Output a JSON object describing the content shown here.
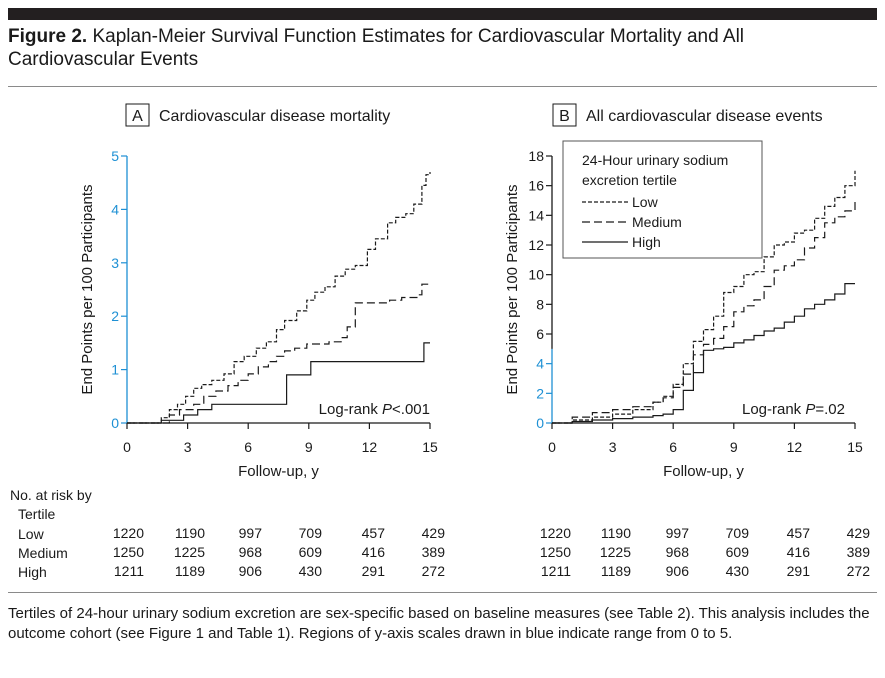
{
  "figure": {
    "label": "Figure 2.",
    "title_text": "Kaplan-Meier Survival Function Estimates for Cardiovascular Mortality and All Cardiovascular Events"
  },
  "colors": {
    "axis_blue": "#1e90d4",
    "ink": "#1a1a1a"
  },
  "chart_data": [
    {
      "type": "line",
      "panel_letter": "A",
      "title": "Cardiovascular disease mortality",
      "xlabel": "Follow-up, y",
      "ylabel": "End Points per 100 Participants",
      "xlim": [
        0,
        15
      ],
      "ylim": [
        0,
        5
      ],
      "xticks": [
        0,
        3,
        6,
        9,
        12,
        15
      ],
      "yticks": [
        0,
        1,
        2,
        3,
        4,
        5
      ],
      "annotation": "Log-rank P<.001",
      "annotation_prefix": "Log-rank ",
      "annotation_p": "P",
      "annotation_rest": "<.001",
      "series": [
        {
          "name": "Low",
          "dash": "4,2",
          "x": [
            0,
            1.7,
            2.1,
            2.5,
            2.9,
            3.3,
            3.7,
            4.2,
            4.8,
            5.3,
            5.8,
            6.4,
            6.9,
            7.4,
            7.8,
            8.4,
            8.9,
            9.3,
            9.8,
            10.3,
            10.8,
            11.3,
            11.9,
            12.3,
            12.9,
            13.3,
            13.8,
            14.2,
            14.6,
            14.8,
            15.0
          ],
          "y": [
            0,
            0.1,
            0.25,
            0.35,
            0.5,
            0.65,
            0.72,
            0.8,
            0.92,
            1.15,
            1.25,
            1.4,
            1.52,
            1.75,
            1.92,
            2.1,
            2.3,
            2.45,
            2.55,
            2.75,
            2.88,
            2.95,
            3.25,
            3.45,
            3.75,
            3.85,
            3.92,
            4.1,
            4.45,
            4.65,
            4.7
          ]
        },
        {
          "name": "Medium",
          "dash": "8,4",
          "x": [
            0,
            2.1,
            2.6,
            3.3,
            3.8,
            4.4,
            5.0,
            5.5,
            6.0,
            6.5,
            7.0,
            7.4,
            7.8,
            8.3,
            8.9,
            9.4,
            10.0,
            10.6,
            10.9,
            11.3,
            12.2,
            12.6,
            13.0,
            13.6,
            14.4,
            14.6,
            15.0
          ],
          "y": [
            0,
            0.15,
            0.25,
            0.35,
            0.5,
            0.6,
            0.7,
            0.8,
            0.92,
            1.05,
            1.15,
            1.25,
            1.35,
            1.4,
            1.48,
            1.48,
            1.52,
            1.6,
            1.8,
            2.25,
            2.25,
            2.25,
            2.3,
            2.35,
            2.4,
            2.6,
            2.6
          ]
        },
        {
          "name": "High",
          "dash": "",
          "x": [
            0,
            1.7,
            2.8,
            3.5,
            4.2,
            5.3,
            7.3,
            7.9,
            9.1,
            12.0,
            14.6,
            14.7,
            15.0
          ],
          "y": [
            0,
            0.05,
            0.15,
            0.25,
            0.35,
            0.35,
            0.35,
            0.9,
            1.15,
            1.15,
            1.15,
            1.5,
            1.5
          ]
        }
      ]
    },
    {
      "type": "line",
      "panel_letter": "B",
      "title": "All cardiovascular disease events",
      "xlabel": "Follow-up, y",
      "ylabel": "End Points per 100 Participants",
      "xlim": [
        0,
        15
      ],
      "ylim": [
        0,
        18
      ],
      "xticks": [
        0,
        3,
        6,
        9,
        12,
        15
      ],
      "yticks": [
        0,
        2,
        4,
        6,
        8,
        10,
        12,
        14,
        16,
        18
      ],
      "blue_range": [
        0,
        5
      ],
      "annotation": "Log-rank P=.02",
      "annotation_prefix": "Log-rank ",
      "annotation_p": "P",
      "annotation_rest": "=.02",
      "legend": {
        "title_line1": "24-Hour urinary sodium",
        "title_line2": "excretion tertile",
        "position": "top-left",
        "entries": [
          "Low",
          "Medium",
          "High"
        ]
      },
      "series": [
        {
          "name": "Low",
          "dash": "4,2",
          "x": [
            0,
            1,
            2,
            3,
            4,
            5,
            5.5,
            6,
            6.5,
            7,
            7.5,
            8,
            8.5,
            9,
            9.5,
            10,
            10.5,
            11,
            11.5,
            12,
            12.5,
            13,
            13.5,
            14,
            14.5,
            15
          ],
          "y": [
            0,
            0.2,
            0.4,
            0.6,
            0.9,
            1.4,
            1.8,
            2.6,
            4.0,
            5.5,
            6.3,
            7.2,
            8.8,
            9.2,
            10.0,
            10.2,
            11.2,
            12.0,
            12.2,
            12.8,
            13.0,
            13.8,
            14.6,
            15.2,
            16.0,
            17.0
          ]
        },
        {
          "name": "Medium",
          "dash": "8,4",
          "x": [
            0,
            1,
            2,
            3,
            4,
            5,
            5.5,
            6,
            6.5,
            7,
            7.5,
            8,
            8.5,
            9,
            9.5,
            10,
            10.5,
            11,
            11.5,
            12,
            12.5,
            13,
            13.5,
            14,
            14.5,
            15
          ],
          "y": [
            0,
            0.4,
            0.7,
            0.9,
            1.1,
            1.4,
            1.7,
            2.4,
            3.3,
            4.6,
            5.3,
            5.7,
            6.5,
            7.5,
            7.9,
            8.3,
            9.2,
            10.3,
            10.6,
            11.0,
            11.8,
            12.5,
            13.5,
            13.9,
            14.3,
            15.0
          ]
        },
        {
          "name": "High",
          "dash": "",
          "x": [
            0,
            1,
            2,
            3,
            4,
            5,
            5.5,
            6,
            6.5,
            7,
            7.5,
            8,
            8.5,
            9,
            9.5,
            10,
            10.5,
            11,
            11.5,
            12,
            12.5,
            13,
            13.5,
            14,
            14.5,
            15
          ],
          "y": [
            0,
            0.1,
            0.2,
            0.3,
            0.4,
            0.5,
            0.6,
            0.9,
            2.2,
            3.4,
            4.9,
            5.0,
            5.1,
            5.4,
            5.6,
            5.9,
            6.2,
            6.4,
            6.8,
            7.2,
            7.7,
            8.0,
            8.3,
            8.7,
            9.4,
            9.4
          ]
        }
      ]
    }
  ],
  "at_risk": {
    "heading_line1": "No. at risk by",
    "heading_line2": "Tertile",
    "rows": [
      {
        "label": "Low",
        "values": [
          "1220",
          "1190",
          "997",
          "709",
          "457",
          "429"
        ]
      },
      {
        "label": "Medium",
        "values": [
          "1250",
          "1225",
          "968",
          "609",
          "416",
          "389"
        ]
      },
      {
        "label": "High",
        "values": [
          "1211",
          "1189",
          "906",
          "430",
          "291",
          "272"
        ]
      }
    ]
  },
  "caption": "Tertiles of 24-hour urinary sodium excretion are sex-specific based on baseline measures (see Table 2). This analysis includes the outcome cohort (see Figure 1 and Table 1). Regions of y-axis scales drawn in blue indicate range from 0 to 5."
}
